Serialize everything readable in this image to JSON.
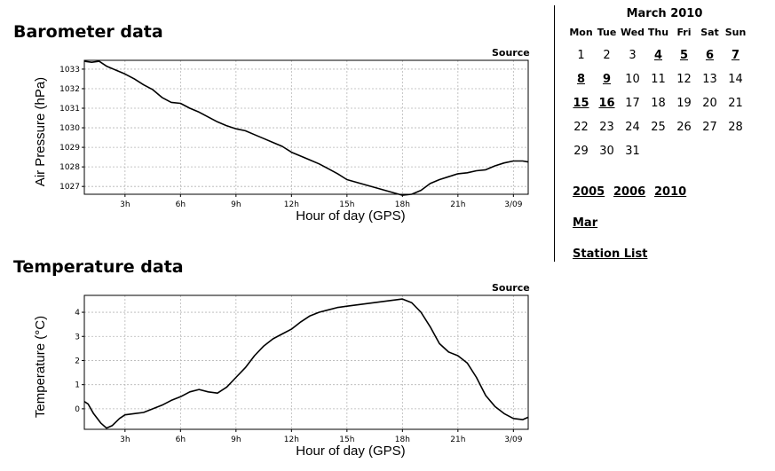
{
  "barometer": {
    "title": "Barometer data",
    "source_label": "Source",
    "chart_data": {
      "type": "line",
      "xlabel": "Hour of day (GPS)",
      "ylabel": "Air Pressure (hPa)",
      "x_ticks": [
        "3h",
        "6h",
        "9h",
        "12h",
        "15h",
        "18h",
        "21h",
        "3/09"
      ],
      "y_ticks": [
        "1027",
        "1028",
        "1029",
        "1030",
        "1031",
        "1032",
        "1033"
      ],
      "xlim": [
        0.8,
        24.8
      ],
      "ylim": [
        1026.6,
        1033.45
      ],
      "grid": true,
      "series": [
        {
          "x": [
            0.8,
            1.2,
            1.6,
            2.0,
            2.5,
            3.0,
            3.5,
            4.0,
            4.5,
            5.0,
            5.5,
            6.0,
            6.5,
            7.0,
            7.5,
            8.0,
            8.5,
            9.0,
            9.5,
            10.0,
            10.5,
            11.0,
            11.5,
            12.0,
            12.5,
            13.0,
            13.5,
            14.0,
            14.5,
            15.0,
            18.0,
            18.5,
            19.0,
            19.5,
            20.0,
            20.5,
            21.0,
            21.5,
            22.0,
            22.5,
            23.0,
            23.5,
            24.0,
            24.5,
            24.8
          ],
          "y": [
            1033.4,
            1033.35,
            1033.4,
            1033.15,
            1032.95,
            1032.75,
            1032.5,
            1032.2,
            1031.95,
            1031.55,
            1031.3,
            1031.25,
            1031.0,
            1030.8,
            1030.55,
            1030.3,
            1030.1,
            1029.95,
            1029.85,
            1029.65,
            1029.45,
            1029.25,
            1029.05,
            1028.75,
            1028.55,
            1028.35,
            1028.15,
            1027.9,
            1027.65,
            1027.35,
            1026.55,
            1026.6,
            1026.8,
            1027.15,
            1027.35,
            1027.5,
            1027.65,
            1027.7,
            1027.8,
            1027.85,
            1028.05,
            1028.2,
            1028.3,
            1028.3,
            1028.25
          ]
        }
      ]
    }
  },
  "temperature": {
    "title": "Temperature data",
    "source_label": "Source",
    "chart_data": {
      "type": "line",
      "xlabel": "Hour of day (GPS)",
      "ylabel": "Temperature (°C)",
      "x_ticks": [
        "3h",
        "6h",
        "9h",
        "12h",
        "15h",
        "18h",
        "21h",
        "3/09"
      ],
      "y_ticks": [
        "0",
        "1",
        "2",
        "3",
        "4"
      ],
      "xlim": [
        0.8,
        24.8
      ],
      "ylim": [
        -0.85,
        4.7
      ],
      "grid": true,
      "series": [
        {
          "x": [
            0.8,
            1.0,
            1.3,
            1.7,
            2.0,
            2.3,
            2.7,
            3.0,
            3.5,
            4.0,
            4.5,
            5.0,
            5.5,
            6.0,
            6.5,
            7.0,
            7.5,
            8.0,
            8.5,
            9.0,
            9.5,
            10.0,
            10.5,
            11.0,
            11.5,
            12.0,
            12.5,
            13.0,
            13.5,
            14.0,
            14.5,
            15.0,
            18.0,
            18.5,
            19.0,
            19.5,
            20.0,
            20.5,
            21.0,
            21.5,
            22.0,
            22.5,
            23.0,
            23.5,
            24.0,
            24.5,
            24.8
          ],
          "y": [
            0.3,
            0.2,
            -0.2,
            -0.6,
            -0.8,
            -0.7,
            -0.4,
            -0.25,
            -0.2,
            -0.15,
            0.0,
            0.15,
            0.35,
            0.5,
            0.7,
            0.8,
            0.7,
            0.65,
            0.9,
            1.3,
            1.7,
            2.2,
            2.6,
            2.9,
            3.1,
            3.3,
            3.6,
            3.85,
            4.0,
            4.1,
            4.2,
            4.25,
            4.55,
            4.4,
            4.0,
            3.4,
            2.7,
            2.35,
            2.2,
            1.9,
            1.3,
            0.55,
            0.1,
            -0.2,
            -0.4,
            -0.45,
            -0.35
          ]
        }
      ]
    }
  },
  "calendar": {
    "title": "March 2010",
    "weekdays": [
      "Mon",
      "Tue",
      "Wed",
      "Thu",
      "Fri",
      "Sat",
      "Sun"
    ],
    "weeks": [
      [
        {
          "d": "1"
        },
        {
          "d": "2"
        },
        {
          "d": "3"
        },
        {
          "d": "4",
          "link": true
        },
        {
          "d": "5",
          "link": true
        },
        {
          "d": "6",
          "link": true
        },
        {
          "d": "7",
          "link": true
        }
      ],
      [
        {
          "d": "8",
          "link": true
        },
        {
          "d": "9",
          "link": true
        },
        {
          "d": "10"
        },
        {
          "d": "11"
        },
        {
          "d": "12"
        },
        {
          "d": "13"
        },
        {
          "d": "14"
        }
      ],
      [
        {
          "d": "15",
          "link": true
        },
        {
          "d": "16",
          "link": true
        },
        {
          "d": "17"
        },
        {
          "d": "18"
        },
        {
          "d": "19"
        },
        {
          "d": "20"
        },
        {
          "d": "21"
        }
      ],
      [
        {
          "d": "22"
        },
        {
          "d": "23"
        },
        {
          "d": "24"
        },
        {
          "d": "25"
        },
        {
          "d": "26"
        },
        {
          "d": "27"
        },
        {
          "d": "28"
        }
      ],
      [
        {
          "d": "29"
        },
        {
          "d": "30"
        },
        {
          "d": "31"
        },
        {
          "d": ""
        },
        {
          "d": ""
        },
        {
          "d": ""
        },
        {
          "d": ""
        }
      ]
    ]
  },
  "years": [
    "2005",
    "2006",
    "2010"
  ],
  "month_link": "Mar",
  "station_list": "Station List"
}
